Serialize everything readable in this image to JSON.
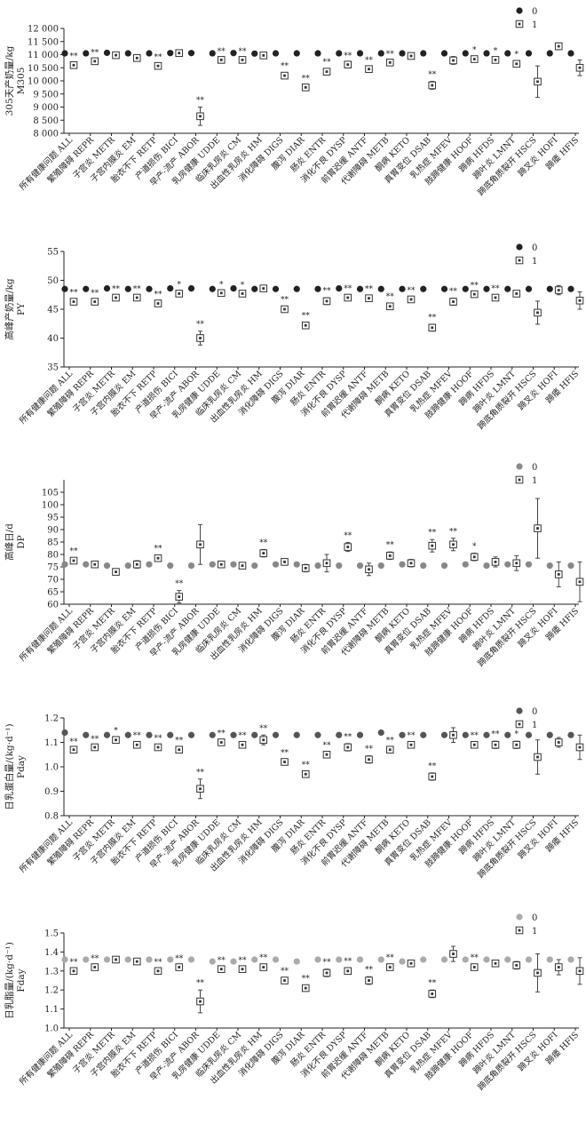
{
  "categories": [
    "所有健康问题 ALL",
    "繁殖障碍 REPR",
    "子宫炎 METR",
    "子宫内膜炎 EM",
    "胎衣不下 RETP",
    "产道损伤 BICI",
    "早产-流产 ABOR",
    "乳房健康 UDDE",
    "临床乳房炎 CM",
    "出血性乳房炎 HM",
    "消化障碍 DIGS",
    "腹泻 DIAR",
    "肠炎 ENTR",
    "消化不良 DYSP",
    "前胃迟缓 ANTF",
    "代谢障碍 METB",
    "酮病 KETO",
    "真胃变位 DSAB",
    "乳热症 MFEV",
    "肢蹄健康 HOOF",
    "蹄病 HFDS",
    "蹄叶炎 LMNT",
    "蹄底角质裂开 HSCS",
    "蹄叉炎 HOFI",
    "蹄瘘 HFIS"
  ],
  "chart_data": [
    {
      "type": "scatter",
      "ylabel": "305天产奶量/kg",
      "ylabel2": "M305",
      "ylim": [
        8000,
        12000
      ],
      "yticks": [
        8000,
        8500,
        9000,
        9500,
        10000,
        10500,
        11000,
        11500,
        12000
      ],
      "ytick_labels": [
        "8 000",
        "8 500",
        "9 000",
        "9 500",
        "10 000",
        "10 500",
        "11 000",
        "11 500",
        "12 000"
      ],
      "legend": {
        "position": "top-right",
        "labels": [
          "0",
          "1"
        ]
      },
      "series": [
        {
          "name": "0",
          "marker": "filled-circle",
          "color": "#222222",
          "values": [
            11050,
            11050,
            11070,
            11050,
            11050,
            11060,
            11060,
            11050,
            11060,
            11040,
            11050,
            11050,
            11050,
            11050,
            11050,
            11050,
            11050,
            11050,
            11050,
            11050,
            11050,
            11050,
            11050,
            11050,
            11050
          ]
        },
        {
          "name": "1",
          "marker": "open-square",
          "values": [
            10600,
            10750,
            10980,
            10870,
            10570,
            11060,
            8650,
            10800,
            10800,
            10970,
            10200,
            9750,
            10350,
            10620,
            10450,
            10700,
            10950,
            9830,
            10780,
            10830,
            10800,
            10650,
            9970,
            11320,
            10500
          ],
          "err": [
            80,
            60,
            50,
            60,
            80,
            70,
            350,
            70,
            70,
            60,
            100,
            80,
            100,
            70,
            80,
            70,
            60,
            150,
            150,
            90,
            80,
            100,
            600,
            130,
            300
          ]
        }
      ],
      "annotations": [
        "**",
        "**",
        "",
        "",
        "**",
        "",
        "**",
        "**",
        "**",
        "",
        "**",
        "**",
        "**",
        "**",
        "**",
        "**",
        "",
        "**",
        "",
        "*",
        "*",
        "*",
        "",
        "",
        ""
      ]
    },
    {
      "type": "scatter",
      "ylabel": "高峰产奶量/kg",
      "ylabel2": "PY",
      "ylim": [
        35,
        55
      ],
      "yticks": [
        35,
        40,
        45,
        50,
        55
      ],
      "ytick_labels": [
        "35",
        "40",
        "45",
        "50",
        "55"
      ],
      "legend": {
        "position": "top-right",
        "labels": [
          "0",
          "1"
        ]
      },
      "series": [
        {
          "name": "0",
          "marker": "filled-circle",
          "color": "#222222",
          "values": [
            48.5,
            48.5,
            48.6,
            48.5,
            48.5,
            48.6,
            48.6,
            48.5,
            48.6,
            48.5,
            48.5,
            48.5,
            48.5,
            48.6,
            48.5,
            48.5,
            48.5,
            48.5,
            48.5,
            48.5,
            48.5,
            48.5,
            48.5,
            48.5,
            48.5
          ]
        },
        {
          "name": "1",
          "marker": "open-square",
          "values": [
            46.3,
            46.3,
            47.0,
            47.0,
            46.0,
            47.7,
            40.0,
            47.8,
            47.7,
            48.6,
            45.0,
            42.2,
            46.4,
            47.0,
            46.9,
            45.5,
            46.7,
            41.8,
            46.3,
            47.6,
            47.0,
            47.7,
            44.4,
            48.3,
            46.5
          ],
          "err": [
            0.4,
            0.3,
            0.3,
            0.3,
            0.4,
            0.4,
            1.2,
            0.3,
            0.3,
            0.4,
            0.5,
            0.5,
            0.6,
            0.4,
            0.4,
            0.5,
            0.4,
            0.6,
            0.6,
            0.3,
            0.4,
            0.5,
            2.0,
            0.8,
            1.5
          ]
        }
      ],
      "annotations": [
        "**",
        "**",
        "**",
        "**",
        "**",
        "*",
        "**",
        "*",
        "*",
        "",
        "**",
        "**",
        "**",
        "**",
        "**",
        "**",
        "**",
        "**",
        "**",
        "**",
        "**",
        "",
        "",
        "",
        ""
      ]
    },
    {
      "type": "scatter",
      "ylabel": "高峰日/d",
      "ylabel2": "DP",
      "ylim": [
        60,
        110
      ],
      "yticks": [
        60,
        65,
        70,
        75,
        80,
        85,
        90,
        95,
        100,
        105
      ],
      "ytick_labels": [
        "60",
        "65",
        "70",
        "75",
        "80",
        "85",
        "90",
        "95",
        "100",
        "105"
      ],
      "legend": {
        "position": "top-right",
        "labels": [
          "0",
          "1"
        ]
      },
      "series": [
        {
          "name": "0",
          "marker": "filled-circle",
          "color": "#888888",
          "values": [
            76,
            76,
            75.5,
            75.5,
            76,
            75.5,
            75.5,
            76,
            76,
            75.5,
            76,
            76,
            75.5,
            75.5,
            75.5,
            75.5,
            76,
            75.5,
            75.5,
            76,
            75.5,
            76,
            76,
            75.5,
            75.5
          ]
        },
        {
          "name": "1",
          "marker": "open-square",
          "values": [
            77.5,
            76,
            73,
            76,
            78.5,
            63,
            84,
            76,
            75.5,
            80.5,
            77,
            74.5,
            76.5,
            83,
            74,
            79.5,
            76.5,
            83.5,
            84,
            79,
            77,
            76.5,
            90.5,
            72,
            69
          ],
          "err": [
            1,
            1,
            1.2,
            1.5,
            1.2,
            2.5,
            8,
            1,
            1,
            1.5,
            1.2,
            1.5,
            3.5,
            1.8,
            2.5,
            1.5,
            1.5,
            2.5,
            2.5,
            1.5,
            2,
            3,
            12,
            5,
            8
          ]
        }
      ],
      "annotations": [
        "**",
        "",
        "",
        "",
        "**",
        "**",
        "",
        "",
        "",
        "**",
        "",
        "",
        "",
        "**",
        "",
        "**",
        "",
        "**",
        "**",
        "*",
        "",
        "",
        "",
        "",
        ""
      ]
    },
    {
      "type": "scatter",
      "ylabel": "日乳蛋白量/(kg·d⁻¹)",
      "ylabel2": "Pday",
      "ylim": [
        0.8,
        1.2
      ],
      "yticks": [
        0.8,
        0.9,
        1.0,
        1.1,
        1.2
      ],
      "ytick_labels": [
        "0.8",
        "0.9",
        "1.0",
        "1.1",
        "1.2"
      ],
      "legend": {
        "position": "top-right",
        "labels": [
          "0",
          "1"
        ]
      },
      "series": [
        {
          "name": "0",
          "marker": "filled-circle",
          "color": "#555555",
          "values": [
            1.14,
            1.13,
            1.13,
            1.13,
            1.13,
            1.13,
            1.13,
            1.13,
            1.13,
            1.13,
            1.13,
            1.13,
            1.13,
            1.13,
            1.13,
            1.14,
            1.13,
            1.13,
            1.13,
            1.13,
            1.13,
            1.13,
            1.13,
            1.13,
            1.13
          ]
        },
        {
          "name": "1",
          "marker": "open-square",
          "values": [
            1.07,
            1.08,
            1.11,
            1.09,
            1.08,
            1.07,
            0.91,
            1.1,
            1.09,
            1.11,
            1.02,
            0.97,
            1.05,
            1.08,
            1.03,
            1.07,
            1.09,
            0.96,
            1.13,
            1.09,
            1.09,
            1.09,
            1.04,
            1.1,
            1.08
          ],
          "err": [
            0.005,
            0.005,
            0.01,
            0.01,
            0.01,
            0.01,
            0.04,
            0.01,
            0.01,
            0.02,
            0.01,
            0.01,
            0.01,
            0.015,
            0.015,
            0.01,
            0.01,
            0.015,
            0.03,
            0.01,
            0.015,
            0.015,
            0.07,
            0.02,
            0.05
          ]
        }
      ],
      "annotations": [
        "**",
        "**",
        "*",
        "**",
        "**",
        "**",
        "**",
        "**",
        "**",
        "**",
        "**",
        "**",
        "**",
        "**",
        "**",
        "**",
        "**",
        "**",
        "",
        "**",
        "**",
        "*",
        "",
        "",
        ""
      ]
    },
    {
      "type": "scatter",
      "ylabel": "日乳脂量/(kg·d⁻¹)",
      "ylabel2": "Fday",
      "ylim": [
        1.0,
        1.5
      ],
      "yticks": [
        1.0,
        1.1,
        1.2,
        1.3,
        1.4,
        1.5
      ],
      "ytick_labels": [
        "1.0",
        "1.1",
        "1.2",
        "1.3",
        "1.4",
        "1.5"
      ],
      "legend": {
        "position": "top-right",
        "labels": [
          "0",
          "1"
        ]
      },
      "series": [
        {
          "name": "0",
          "marker": "filled-circle",
          "color": "#aaaaaa",
          "values": [
            1.36,
            1.36,
            1.36,
            1.36,
            1.36,
            1.36,
            1.36,
            1.35,
            1.35,
            1.36,
            1.36,
            1.35,
            1.36,
            1.36,
            1.36,
            1.36,
            1.35,
            1.36,
            1.36,
            1.36,
            1.36,
            1.36,
            1.36,
            1.36,
            1.36
          ]
        },
        {
          "name": "1",
          "marker": "open-square",
          "values": [
            1.3,
            1.32,
            1.36,
            1.35,
            1.3,
            1.32,
            1.14,
            1.31,
            1.31,
            1.32,
            1.25,
            1.21,
            1.29,
            1.3,
            1.25,
            1.32,
            1.34,
            1.18,
            1.39,
            1.32,
            1.34,
            1.33,
            1.29,
            1.32,
            1.3
          ],
          "err": [
            0.01,
            0.01,
            0.01,
            0.01,
            0.01,
            0.01,
            0.06,
            0.01,
            0.01,
            0.015,
            0.015,
            0.015,
            0.02,
            0.015,
            0.02,
            0.015,
            0.015,
            0.02,
            0.04,
            0.015,
            0.015,
            0.02,
            0.1,
            0.04,
            0.07
          ]
        }
      ],
      "annotations": [
        "**",
        "**",
        "",
        "",
        "**",
        "**",
        "**",
        "**",
        "**",
        "**",
        "**",
        "**",
        "**",
        "**",
        "**",
        "**",
        "",
        "**",
        "",
        "**",
        "",
        "",
        "",
        "",
        ""
      ]
    }
  ]
}
